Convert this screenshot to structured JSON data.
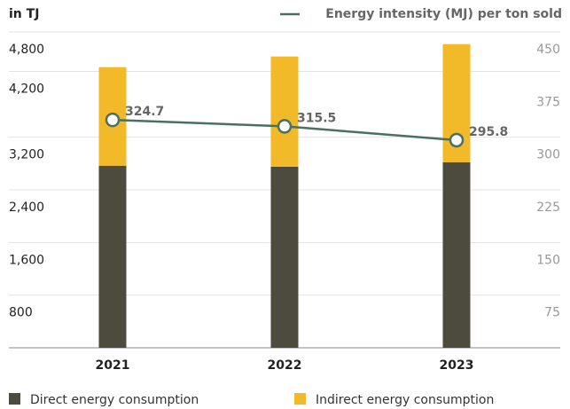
{
  "chart_data": {
    "type": "bar",
    "y_label": "in TJ",
    "categories": [
      "2021",
      "2022",
      "2023"
    ],
    "series": [
      {
        "name": "Direct energy consumption",
        "color": "#4d4a3e",
        "values": [
          2767,
          2753,
          2820
        ]
      },
      {
        "name": "Indirect energy consumption",
        "color": "#f2b928",
        "values": [
          1498,
          1674,
          1795
        ]
      },
      {
        "name": "Energy intensity (MJ) per ton sold",
        "color": "#4a7060",
        "type": "line",
        "axis": "y2",
        "values": [
          324.7,
          315.5,
          295.8
        ]
      }
    ],
    "stacked": true,
    "ylim": [
      0,
      4800
    ],
    "yticks": [
      {
        "value": 800,
        "label": "800"
      },
      {
        "value": 1600,
        "label": "1,600"
      },
      {
        "value": 2400,
        "label": "2,400"
      },
      {
        "value": 3200,
        "label": "3,200"
      },
      {
        "value": 4200,
        "label": "4,200"
      },
      {
        "value": 4800,
        "label": "4,800"
      }
    ],
    "y2lim": [
      0,
      450
    ],
    "y2ticks": [
      75,
      150,
      225,
      300,
      375,
      450
    ],
    "grid": true
  }
}
